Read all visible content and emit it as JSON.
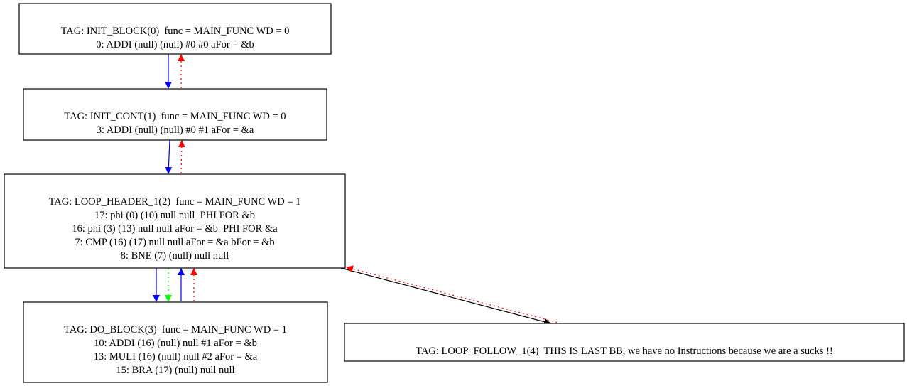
{
  "nodes": [
    {
      "id": "init-block",
      "lines": [
        "TAG: INIT_BLOCK(0)  func = MAIN_FUNC WD = 0",
        "0: ADDI (null) (null) #0 #0 aFor = &b"
      ]
    },
    {
      "id": "init-cont",
      "lines": [
        "TAG: INIT_CONT(1)  func = MAIN_FUNC WD = 0",
        "3: ADDI (null) (null) #0 #1 aFor = &a"
      ]
    },
    {
      "id": "loop-header",
      "lines": [
        "TAG: LOOP_HEADER_1(2)  func = MAIN_FUNC WD = 1",
        "17: phi (0) (10) null null  PHI FOR &b",
        "16: phi (3) (13) null null aFor = &b  PHI FOR &a",
        "7: CMP (16) (17) null null aFor = &a bFor = &b",
        "8: BNE (7) (null) null null"
      ]
    },
    {
      "id": "do-block",
      "lines": [
        "TAG: DO_BLOCK(3)  func = MAIN_FUNC WD = 1",
        "10: ADDI (16) (null) null #1 aFor = &b",
        "13: MULI (16) (null) null #2 aFor = &a",
        "15: BRA (17) (null) null null"
      ]
    },
    {
      "id": "loop-follow",
      "lines": [
        "TAG: LOOP_FOLLOW_1(4)  THIS IS LAST BB, we have no Instructions because we are a sucks !!"
      ]
    }
  ],
  "edges": [
    {
      "from": "init-block",
      "to": "init-cont",
      "color": "#0000ff",
      "style": "solid"
    },
    {
      "from": "init-cont",
      "to": "init-block",
      "color": "#ff0000",
      "style": "dotted"
    },
    {
      "from": "init-cont",
      "to": "loop-header",
      "color": "#0000ff",
      "style": "solid"
    },
    {
      "from": "loop-header",
      "to": "init-cont",
      "color": "#ff0000",
      "style": "dotted"
    },
    {
      "from": "loop-header",
      "to": "do-block",
      "color": "#0000ff",
      "style": "solid"
    },
    {
      "from": "loop-header",
      "to": "do-block",
      "color": "#00ff00",
      "style": "dotted"
    },
    {
      "from": "do-block",
      "to": "loop-header",
      "color": "#0000ff",
      "style": "solid"
    },
    {
      "from": "do-block",
      "to": "loop-header",
      "color": "#ff0000",
      "style": "dotted"
    },
    {
      "from": "loop-header",
      "to": "loop-follow",
      "color": "#000000",
      "style": "solid"
    },
    {
      "from": "loop-follow",
      "to": "loop-header",
      "color": "#ff0000",
      "style": "dotted"
    }
  ]
}
